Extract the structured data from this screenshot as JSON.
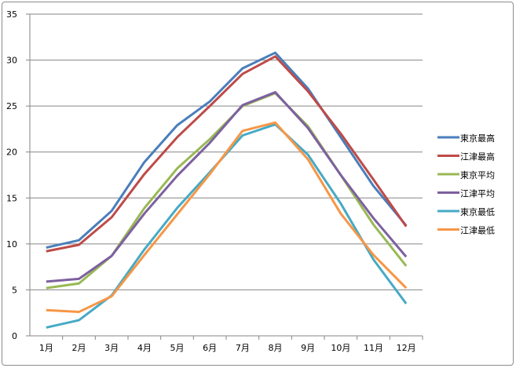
{
  "chart_data": {
    "type": "line",
    "categories": [
      "1月",
      "2月",
      "3月",
      "4月",
      "5月",
      "6月",
      "7月",
      "8月",
      "9月",
      "10月",
      "11月",
      "12月"
    ],
    "ylim": [
      0,
      35
    ],
    "yticks": [
      0,
      5,
      10,
      15,
      20,
      25,
      30,
      35
    ],
    "grid": true,
    "legend_position": "right",
    "series": [
      {
        "name": "東京最高",
        "color": "#4A7EBB",
        "values": [
          9.6,
          10.4,
          13.6,
          18.9,
          22.9,
          25.5,
          29.1,
          30.8,
          26.9,
          21.6,
          16.3,
          12.0
        ]
      },
      {
        "name": "江津最高",
        "color": "#BE4B48",
        "values": [
          9.2,
          9.9,
          12.9,
          17.6,
          21.6,
          25.0,
          28.5,
          30.4,
          26.6,
          22.0,
          17.0,
          11.9
        ]
      },
      {
        "name": "東京平均",
        "color": "#98B954",
        "values": [
          5.2,
          5.7,
          8.7,
          13.9,
          18.2,
          21.4,
          25.0,
          26.4,
          22.8,
          17.5,
          12.1,
          7.6
        ]
      },
      {
        "name": "江津平均",
        "color": "#7D60A0",
        "values": [
          5.9,
          6.2,
          8.7,
          13.3,
          17.4,
          21.0,
          25.1,
          26.5,
          22.6,
          17.5,
          12.8,
          8.6
        ]
      },
      {
        "name": "東京最低",
        "color": "#46AAC5",
        "values": [
          0.9,
          1.7,
          4.4,
          9.4,
          13.9,
          17.8,
          21.8,
          23.0,
          19.7,
          14.4,
          8.3,
          3.5
        ]
      },
      {
        "name": "江津最低",
        "color": "#F79646",
        "values": [
          2.8,
          2.6,
          4.3,
          8.8,
          13.2,
          17.6,
          22.3,
          23.2,
          19.2,
          13.3,
          8.8,
          5.2
        ]
      }
    ]
  }
}
